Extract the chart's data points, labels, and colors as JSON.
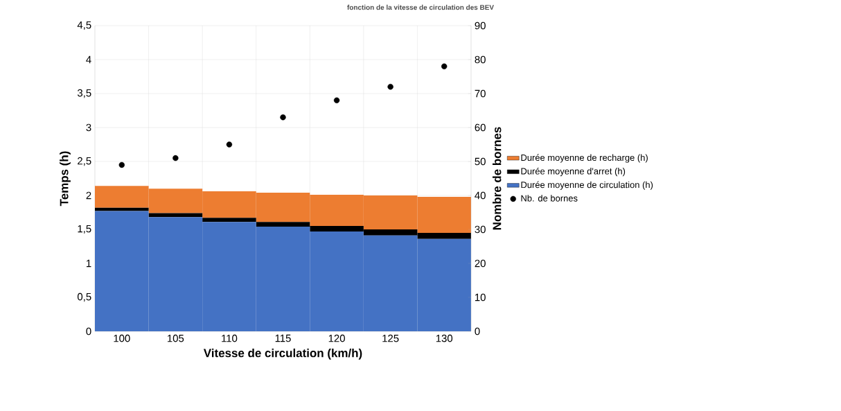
{
  "chart_data": {
    "type": "bar",
    "stacked": true,
    "title": "fonction de la vitesse de circulation des BEV",
    "xlabel": "Vitesse de circulation (km/h)",
    "ylabel": "Temps (h)",
    "y2label": "Nombre de bornes",
    "categories": [
      "100",
      "105",
      "110",
      "115",
      "120",
      "125",
      "130"
    ],
    "series": [
      {
        "name": "Durée moyenne de circulation (h)",
        "color": "#4472c4",
        "values": [
          1.77,
          1.68,
          1.61,
          1.54,
          1.47,
          1.41,
          1.36
        ]
      },
      {
        "name": "Durée moyenne d'arret (h)",
        "color": "#000000",
        "values": [
          0.05,
          0.06,
          0.06,
          0.07,
          0.08,
          0.09,
          0.09
        ]
      },
      {
        "name": "Durée moyenne de recharge (h)",
        "color": "#ed7d31",
        "values": [
          0.32,
          0.36,
          0.39,
          0.43,
          0.46,
          0.5,
          0.53
        ]
      },
      {
        "name": "Nb. de bornes",
        "type": "scatter",
        "axis": "y2",
        "color": "#000000",
        "values": [
          49,
          51,
          55,
          63,
          68,
          72,
          78
        ]
      }
    ],
    "ylim": [
      0,
      4.5
    ],
    "yticks": [
      0,
      {
        "value": 0.5,
        "label": "0,5"
      },
      1,
      {
        "value": 1.5,
        "label": "1,5"
      },
      2,
      {
        "value": 2.5,
        "label": "2,5"
      },
      3,
      {
        "value": 3.5,
        "label": "3,5"
      },
      4,
      {
        "value": 4.5,
        "label": "4,5"
      }
    ],
    "y2lim": [
      0,
      90
    ],
    "y2ticks": [
      0,
      10,
      20,
      30,
      40,
      50,
      60,
      70,
      80,
      90
    ],
    "grid": true,
    "legend": "right"
  }
}
